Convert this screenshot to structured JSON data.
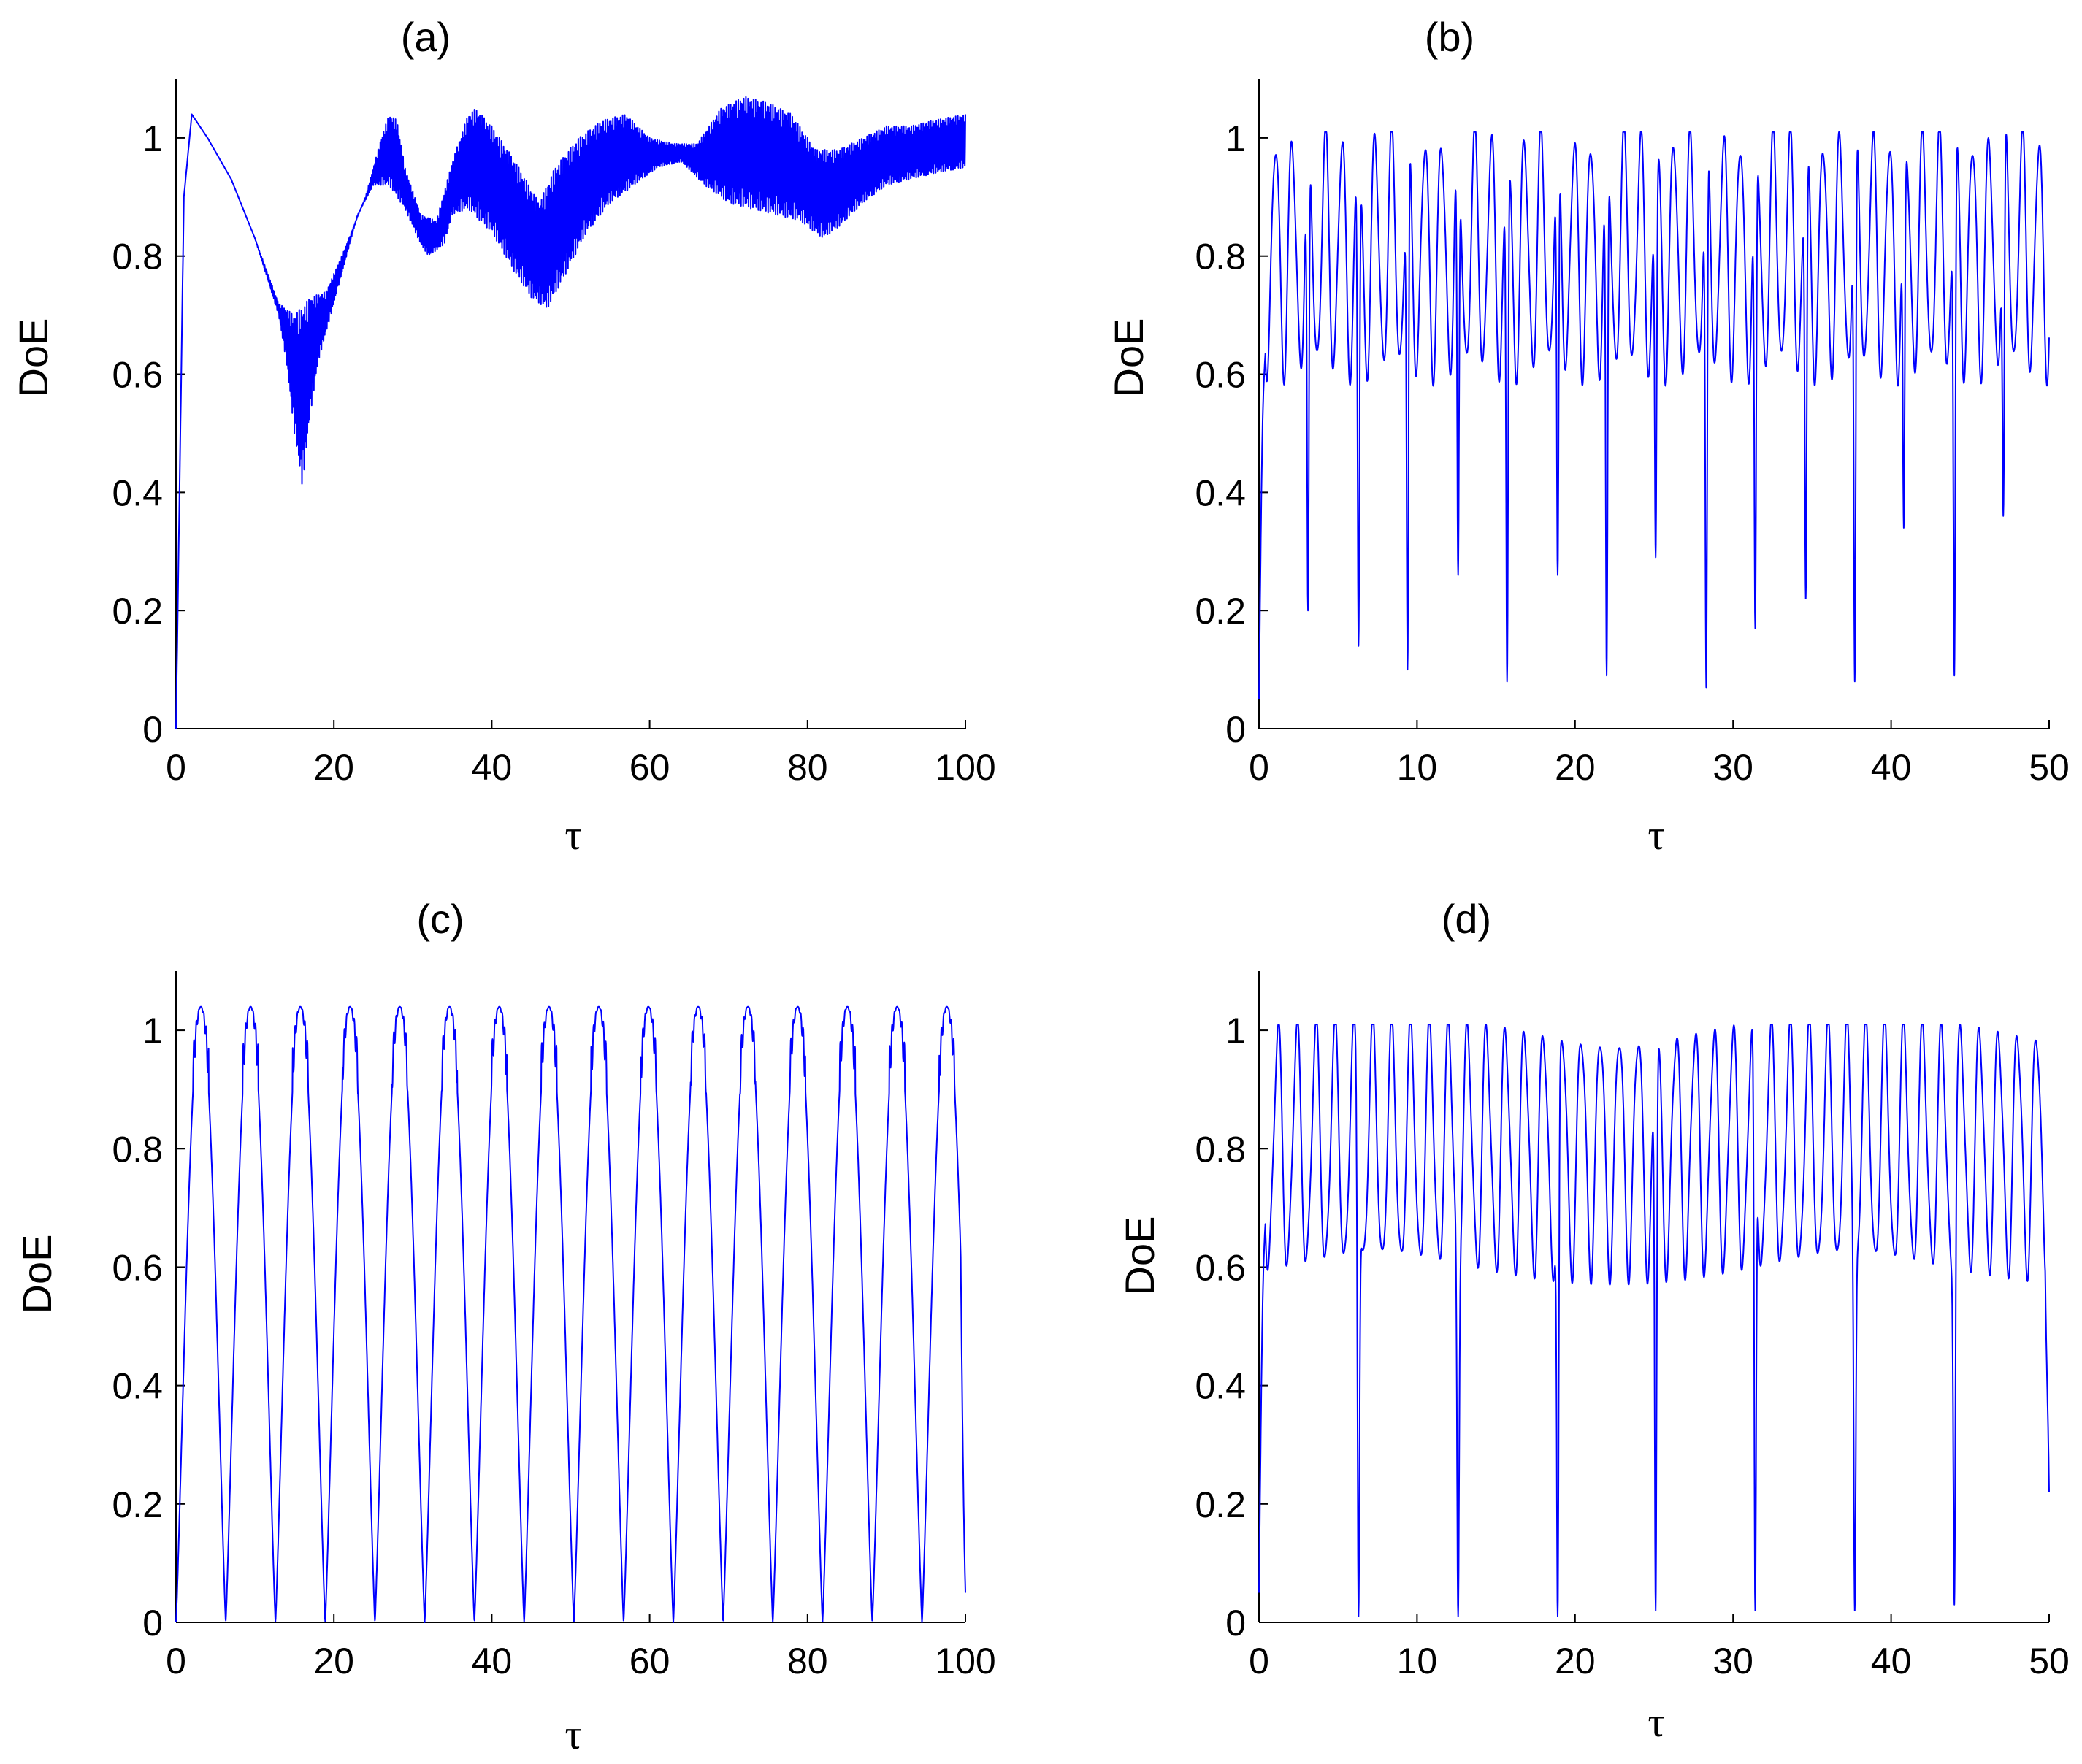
{
  "colors": {
    "line": "#0000ff",
    "axis": "#000000",
    "background": "#ffffff"
  },
  "chart_data": [
    {
      "panel": "(a)",
      "title": "(a)",
      "type": "line",
      "xlabel": "τ",
      "ylabel": "DoE",
      "xlim": [
        0,
        100
      ],
      "ylim": [
        0,
        1.1
      ],
      "xticks": [
        "0",
        "20",
        "40",
        "60",
        "80",
        "100"
      ],
      "yticks": [
        "0",
        "0.2",
        "0.4",
        "0.6",
        "0.8",
        "1"
      ],
      "grid": false,
      "series": [
        {
          "envelope_upper": [
            [
              0,
              0.0
            ],
            [
              1,
              0.9
            ],
            [
              2,
              1.04
            ],
            [
              4,
              1.0
            ],
            [
              7,
              0.93
            ],
            [
              10,
              0.83
            ],
            [
              13,
              0.72
            ],
            [
              15,
              0.7
            ],
            [
              17,
              0.73
            ],
            [
              19,
              0.74
            ],
            [
              21,
              0.8
            ],
            [
              24,
              0.9
            ],
            [
              26,
              1.0
            ],
            [
              27,
              1.04
            ],
            [
              28,
              1.03
            ],
            [
              29,
              0.95
            ],
            [
              31,
              0.87
            ],
            [
              33,
              0.86
            ],
            [
              35,
              0.96
            ],
            [
              37,
              1.04
            ],
            [
              38,
              1.05
            ],
            [
              40,
              1.02
            ],
            [
              43,
              0.96
            ],
            [
              46,
              0.89
            ],
            [
              48,
              0.95
            ],
            [
              51,
              1.0
            ],
            [
              54,
              1.03
            ],
            [
              57,
              1.04
            ],
            [
              60,
              1.0
            ],
            [
              63,
              0.99
            ],
            [
              66,
              0.99
            ],
            [
              69,
              1.05
            ],
            [
              72,
              1.07
            ],
            [
              75,
              1.06
            ],
            [
              78,
              1.04
            ],
            [
              81,
              0.98
            ],
            [
              84,
              0.98
            ],
            [
              87,
              1.0
            ],
            [
              90,
              1.02
            ],
            [
              93,
              1.02
            ],
            [
              96,
              1.03
            ],
            [
              100,
              1.04
            ]
          ],
          "envelope_lower": [
            [
              0,
              0.0
            ],
            [
              1,
              0.9
            ],
            [
              2,
              1.04
            ],
            [
              4,
              1.0
            ],
            [
              7,
              0.93
            ],
            [
              10,
              0.83
            ],
            [
              13,
              0.7
            ],
            [
              14,
              0.62
            ],
            [
              15,
              0.5
            ],
            [
              16,
              0.41
            ],
            [
              17,
              0.53
            ],
            [
              18,
              0.62
            ],
            [
              20,
              0.72
            ],
            [
              23,
              0.87
            ],
            [
              25,
              0.92
            ],
            [
              27,
              0.92
            ],
            [
              29,
              0.88
            ],
            [
              31,
              0.82
            ],
            [
              32,
              0.8
            ],
            [
              34,
              0.82
            ],
            [
              35,
              0.87
            ],
            [
              37,
              0.88
            ],
            [
              40,
              0.84
            ],
            [
              43,
              0.77
            ],
            [
              45,
              0.73
            ],
            [
              47,
              0.71
            ],
            [
              49,
              0.76
            ],
            [
              52,
              0.84
            ],
            [
              55,
              0.89
            ],
            [
              58,
              0.92
            ],
            [
              61,
              0.95
            ],
            [
              64,
              0.96
            ],
            [
              67,
              0.92
            ],
            [
              70,
              0.89
            ],
            [
              73,
              0.88
            ],
            [
              76,
              0.87
            ],
            [
              79,
              0.86
            ],
            [
              81,
              0.84
            ],
            [
              82,
              0.83
            ],
            [
              84,
              0.85
            ],
            [
              87,
              0.89
            ],
            [
              90,
              0.92
            ],
            [
              93,
              0.93
            ],
            [
              96,
              0.94
            ],
            [
              100,
              0.95
            ]
          ]
        }
      ]
    },
    {
      "panel": "(b)",
      "title": "(b)",
      "type": "line",
      "xlabel": "τ",
      "ylabel": "DoE",
      "xlim": [
        0,
        50
      ],
      "ylim": [
        0,
        1.1
      ],
      "xticks": [
        "0",
        "10",
        "20",
        "30",
        "40",
        "50"
      ],
      "yticks": [
        "0",
        "0.2",
        "0.4",
        "0.6",
        "0.8",
        "1"
      ],
      "grid": false,
      "baseline_min": 0.61,
      "peak_max": 1.0,
      "deep_dips": [
        [
          3.1,
          0.2
        ],
        [
          6.3,
          0.14
        ],
        [
          9.4,
          0.1
        ],
        [
          12.6,
          0.26
        ],
        [
          15.7,
          0.08
        ],
        [
          18.9,
          0.26
        ],
        [
          22.0,
          0.09
        ],
        [
          25.1,
          0.29
        ],
        [
          28.3,
          0.07
        ],
        [
          31.4,
          0.17
        ],
        [
          34.6,
          0.22
        ],
        [
          37.7,
          0.08
        ],
        [
          40.8,
          0.34
        ],
        [
          44.0,
          0.09
        ],
        [
          47.1,
          0.36
        ]
      ]
    },
    {
      "panel": "(c)",
      "title": "(c)",
      "type": "line",
      "xlabel": "τ",
      "ylabel": "DoE",
      "xlim": [
        0,
        100
      ],
      "ylim": [
        0,
        1.1
      ],
      "xticks": [
        "0",
        "20",
        "40",
        "60",
        "80",
        "100"
      ],
      "yticks": [
        "0",
        "0.2",
        "0.4",
        "0.6",
        "0.8",
        "1"
      ],
      "grid": false,
      "period": 6.3,
      "peak_max": 1.04,
      "min": 0.0,
      "end_value": 0.05
    },
    {
      "panel": "(d)",
      "title": "(d)",
      "type": "line",
      "xlabel": "τ",
      "ylabel": "DoE",
      "xlim": [
        0,
        50
      ],
      "ylim": [
        0,
        1.1
      ],
      "xticks": [
        "0",
        "10",
        "20",
        "30",
        "40",
        "50"
      ],
      "yticks": [
        "0",
        "0.2",
        "0.4",
        "0.6",
        "0.8",
        "1"
      ],
      "grid": false,
      "baseline_min": 0.6,
      "peak_max": 1.0,
      "deep_dips": [
        [
          6.3,
          0.01
        ],
        [
          12.6,
          0.01
        ],
        [
          18.9,
          0.01
        ],
        [
          25.1,
          0.02
        ],
        [
          31.4,
          0.02
        ],
        [
          37.7,
          0.02
        ],
        [
          44.0,
          0.03
        ]
      ],
      "end_value": 0.22
    }
  ]
}
